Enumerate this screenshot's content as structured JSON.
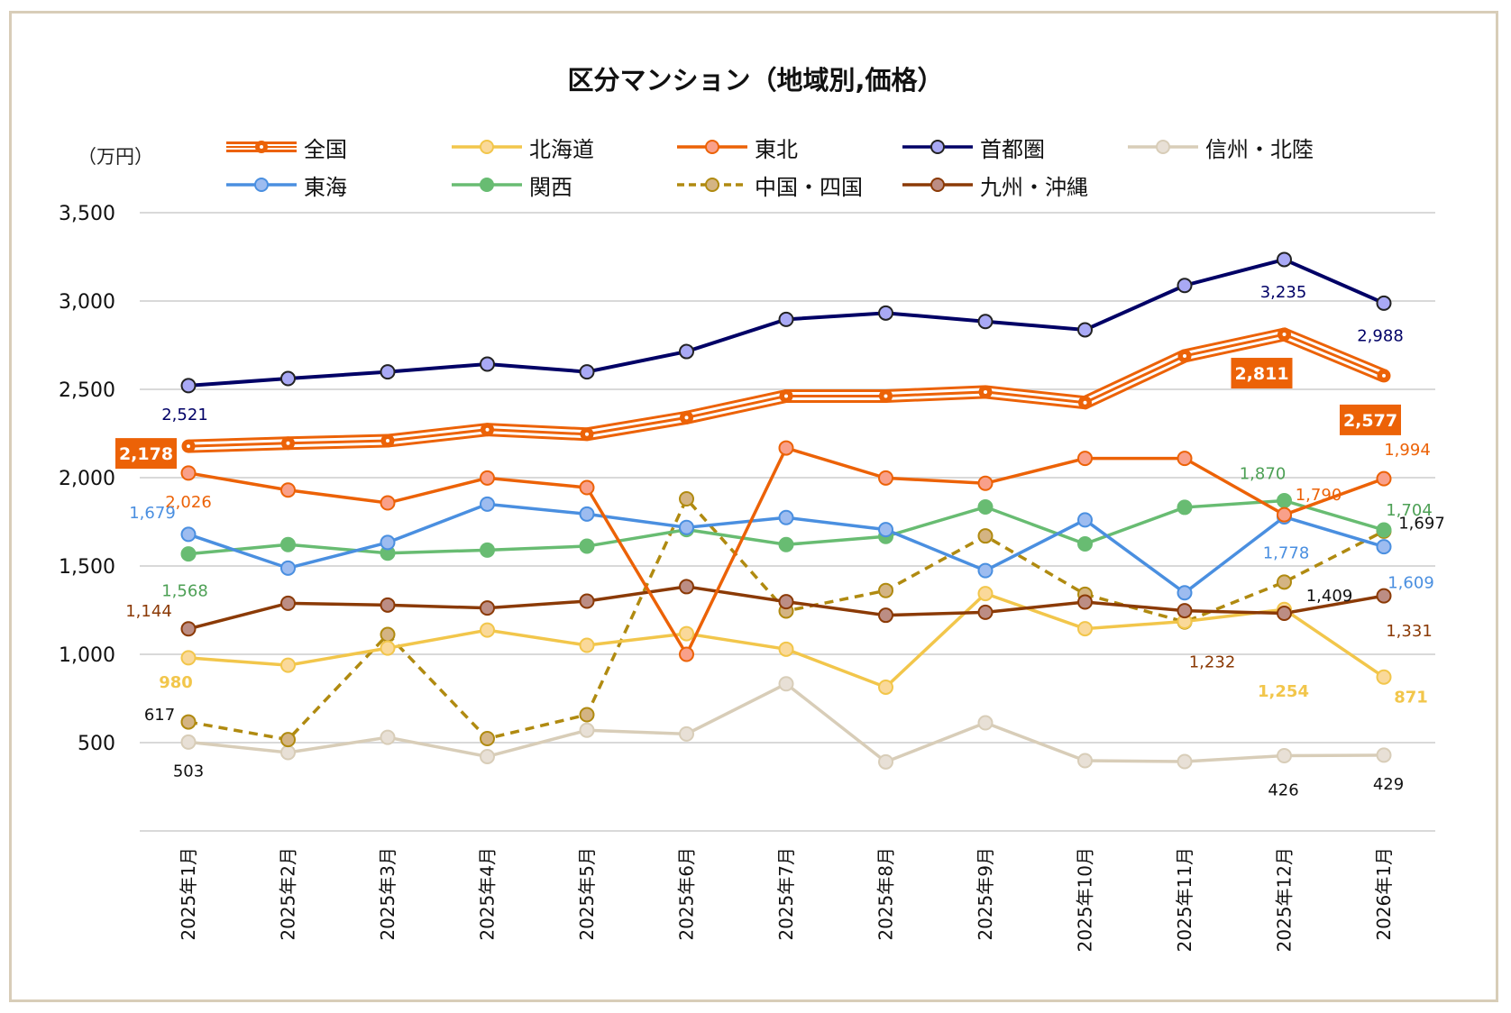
{
  "chart_data": {
    "type": "line",
    "title": "区分マンション（地域別,価格）",
    "ylabel": "（万円）",
    "xlabel": "",
    "ylim": [
      0,
      3500
    ],
    "yticks": [
      500,
      1000,
      1500,
      2000,
      2500,
      3000,
      3500
    ],
    "ytick_labels": [
      "500",
      "1,000",
      "1,500",
      "2,000",
      "2,500",
      "3,000",
      "3,500"
    ],
    "grid": true,
    "legend_position": "top",
    "categories": [
      "2025年1月",
      "2025年2月",
      "2025年3月",
      "2025年4月",
      "2025年5月",
      "2025年6月",
      "2025年7月",
      "2025年8月",
      "2025年9月",
      "2025年10月",
      "2025年11月",
      "2025年12月",
      "2026年1月"
    ],
    "series": [
      {
        "name": "全国",
        "style": "triple",
        "color": "#ec6207",
        "marker_fill": "#ec6207",
        "values": [
          2178,
          2195,
          2209,
          2272,
          2246,
          2340,
          2462,
          2462,
          2485,
          2425,
          2689,
          2811,
          2577
        ]
      },
      {
        "name": "北海道",
        "style": "solid",
        "color": "#f2c64b",
        "marker_fill": "#fad99a",
        "values": [
          980,
          938,
          1035,
          1137,
          1051,
          1117,
          1029,
          814,
          1344,
          1145,
          1186,
          1254,
          871
        ]
      },
      {
        "name": "東北",
        "style": "solid",
        "color": "#ec6207",
        "marker_fill": "#f9a08a",
        "values": [
          2026,
          1930,
          1857,
          1998,
          1944,
          1000,
          2168,
          1998,
          1968,
          2109,
          2109,
          1790,
          1994
        ]
      },
      {
        "name": "首都圏",
        "style": "solid",
        "color": "#000066",
        "marker_fill": "#a9a9f5",
        "marker_stroke": "#222222",
        "values": [
          2521,
          2561,
          2599,
          2643,
          2599,
          2714,
          2896,
          2932,
          2884,
          2837,
          3088,
          3235,
          2988
        ]
      },
      {
        "name": "信州・北陸",
        "style": "solid",
        "color": "#d8cdb8",
        "marker_fill": "#e8e0d6",
        "values": [
          503,
          444,
          530,
          421,
          570,
          549,
          833,
          391,
          612,
          398,
          393,
          426,
          429
        ]
      },
      {
        "name": "東海",
        "style": "solid",
        "color": "#4a8fe0",
        "marker_fill": "#9dbcf0",
        "values": [
          1679,
          1488,
          1633,
          1850,
          1794,
          1718,
          1774,
          1706,
          1474,
          1761,
          1348,
          1778,
          1609
        ]
      },
      {
        "name": "関西",
        "style": "solid",
        "color": "#68bc72",
        "marker_fill": "#68bc72",
        "values": [
          1568,
          1621,
          1573,
          1590,
          1612,
          1706,
          1621,
          1667,
          1834,
          1625,
          1832,
          1870,
          1704
        ]
      },
      {
        "name": "中国・四国",
        "style": "dashed",
        "color": "#b08a10",
        "marker_fill": "#d4b483",
        "values": [
          617,
          517,
          1112,
          523,
          658,
          1880,
          1245,
          1361,
          1670,
          1340,
          1183,
          1409,
          1697
        ]
      },
      {
        "name": "九州・沖縄",
        "style": "solid",
        "color": "#8b3a06",
        "marker_fill": "#bc8d84",
        "values": [
          1144,
          1289,
          1279,
          1262,
          1301,
          1383,
          1298,
          1221,
          1238,
          1296,
          1247,
          1232,
          1331
        ]
      }
    ],
    "data_labels": [
      {
        "series": "全国",
        "index": 0,
        "text": "2,178",
        "boxed": true
      },
      {
        "series": "全国",
        "index": 11,
        "text": "2,811",
        "boxed": true
      },
      {
        "series": "全国",
        "index": 12,
        "text": "2,577",
        "boxed": true
      },
      {
        "series": "首都圏",
        "index": 0,
        "text": "2,521"
      },
      {
        "series": "首都圏",
        "index": 11,
        "text": "3,235"
      },
      {
        "series": "首都圏",
        "index": 12,
        "text": "2,988"
      },
      {
        "series": "東北",
        "index": 0,
        "text": "2,026"
      },
      {
        "series": "東北",
        "index": 11,
        "text": "1,790"
      },
      {
        "series": "東北",
        "index": 12,
        "text": "1,994"
      },
      {
        "series": "東海",
        "index": 0,
        "text": "1,679"
      },
      {
        "series": "東海",
        "index": 11,
        "text": "1,778"
      },
      {
        "series": "東海",
        "index": 12,
        "text": "1,609"
      },
      {
        "series": "関西",
        "index": 0,
        "text": "1,568"
      },
      {
        "series": "関西",
        "index": 11,
        "text": "1,870"
      },
      {
        "series": "関西",
        "index": 12,
        "text": "1,704"
      },
      {
        "series": "九州・沖縄",
        "index": 0,
        "text": "1,144"
      },
      {
        "series": "九州・沖縄",
        "index": 11,
        "text": "1,232"
      },
      {
        "series": "九州・沖縄",
        "index": 12,
        "text": "1,331"
      },
      {
        "series": "北海道",
        "index": 0,
        "text": "980",
        "bold": true
      },
      {
        "series": "北海道",
        "index": 11,
        "text": "1,254",
        "bold": true
      },
      {
        "series": "北海道",
        "index": 12,
        "text": "871",
        "bold": true
      },
      {
        "series": "中国・四国",
        "index": 0,
        "text": "617"
      },
      {
        "series": "中国・四国",
        "index": 11,
        "text": "1,409"
      },
      {
        "series": "中国・四国",
        "index": 12,
        "text": "1,697"
      },
      {
        "series": "信州・北陸",
        "index": 0,
        "text": "503"
      },
      {
        "series": "信州・北陸",
        "index": 11,
        "text": "426"
      },
      {
        "series": "信州・北陸",
        "index": 12,
        "text": "429"
      }
    ]
  }
}
